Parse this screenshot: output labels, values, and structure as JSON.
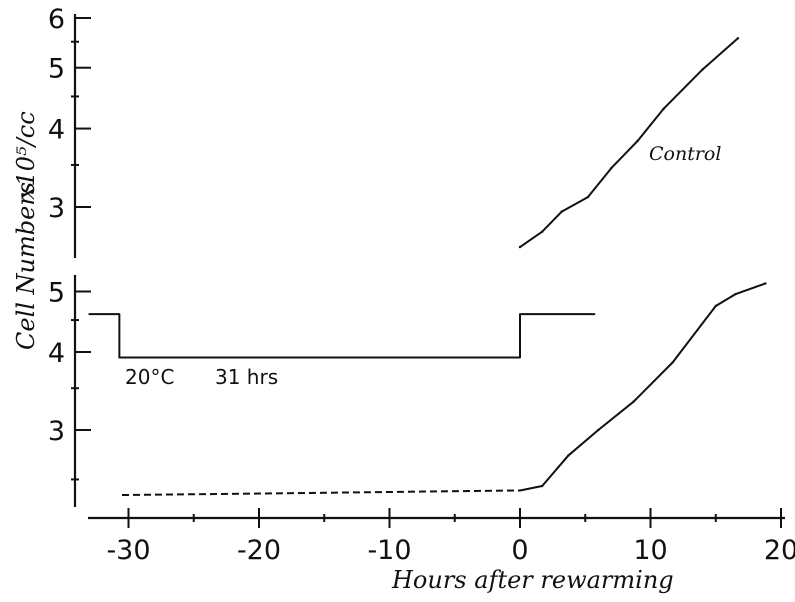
{
  "chart_data": {
    "type": "line",
    "xlabel": "Hours after rewarming",
    "ylabel": "Cell Numbers",
    "ylabel_unit": "x10⁵/cc",
    "x_ticks": [
      "-30",
      "-20",
      "-10",
      "0",
      "10",
      "20"
    ],
    "xlim": [
      -33,
      21
    ],
    "y_scale": "log",
    "upper_panel": {
      "y_ticks": [
        "3",
        "4",
        "5",
        "6"
      ],
      "ylim": [
        2.5,
        6
      ],
      "series": [
        {
          "name": "Control",
          "x": [
            0,
            1.7,
            3.2,
            5.2,
            7,
            9,
            11,
            14,
            16.7
          ],
          "y": [
            2.59,
            2.74,
            2.95,
            3.11,
            3.46,
            3.82,
            4.3,
            4.97,
            5.57
          ]
        }
      ]
    },
    "lower_panel": {
      "y_ticks": [
        "3",
        "4",
        "5"
      ],
      "ylim": [
        2.1,
        5.2
      ],
      "series": [
        {
          "x": [
            -30.5,
            -15,
            -0.5,
            0,
            1.7,
            3.7,
            6,
            8.7,
            11.7,
            15,
            16.5,
            18.8
          ],
          "y": [
            2.36,
            2.38,
            2.4,
            2.4,
            2.44,
            2.73,
            3.0,
            3.33,
            3.85,
            4.74,
            4.95,
            5.15
          ],
          "dashed_until_x": 0
        }
      ],
      "temperature_profile": {
        "x": [
          -33,
          -30.7,
          -30.7,
          0,
          0,
          5.7
        ],
        "y": [
          4.6,
          4.6,
          3.92,
          3.92,
          4.6,
          4.6
        ]
      },
      "annotation_temp": "20°C",
      "annotation_duration": "31 hrs"
    }
  }
}
